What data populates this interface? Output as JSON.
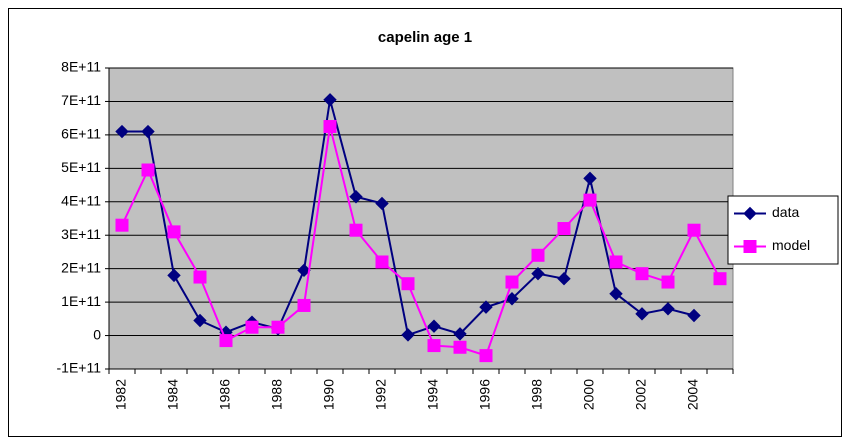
{
  "chart_data": {
    "type": "line",
    "title": "capelin age 1",
    "categories": [
      "1982",
      null,
      "1984",
      null,
      "1986",
      null,
      "1988",
      null,
      "1990",
      null,
      "1992",
      null,
      "1994",
      null,
      "1996",
      null,
      "1998",
      null,
      "2000",
      null,
      "2002",
      null,
      "2004",
      null
    ],
    "series": [
      {
        "name": "data",
        "color": "#000080",
        "marker": "diamond",
        "values": [
          610000000000,
          610000000000,
          180000000000,
          45000000000,
          10000000000,
          40000000000,
          20000000000,
          195000000000,
          705000000000,
          415000000000,
          395000000000,
          2000000000,
          28000000000,
          5000000000,
          85000000000,
          110000000000,
          185000000000,
          170000000000,
          470000000000,
          125000000000,
          65000000000,
          80000000000,
          60000000000,
          null
        ]
      },
      {
        "name": "model",
        "color": "#FF00FF",
        "marker": "square",
        "values": [
          330000000000,
          495000000000,
          310000000000,
          175000000000,
          -15000000000,
          25000000000,
          25000000000,
          90000000000,
          625000000000,
          315000000000,
          220000000000,
          155000000000,
          -30000000000,
          -35000000000,
          -60000000000,
          160000000000,
          240000000000,
          320000000000,
          405000000000,
          220000000000,
          185000000000,
          160000000000,
          315000000000,
          170000000000
        ]
      }
    ],
    "ylim": [
      -100000000000,
      800000000000
    ],
    "yticks": [
      {
        "value": -100000000000,
        "label": "-1E+11"
      },
      0,
      {
        "value": 100000000000,
        "label": "1E+11"
      },
      {
        "value": 200000000000,
        "label": "2E+11"
      },
      {
        "value": 300000000000,
        "label": "3E+11"
      },
      {
        "value": 400000000000,
        "label": "4E+11"
      },
      {
        "value": 500000000000,
        "label": "5E+11"
      },
      {
        "value": 600000000000,
        "label": "6E+11"
      },
      {
        "value": 700000000000,
        "label": "7E+11"
      },
      {
        "value": 800000000000,
        "label": "8E+11"
      }
    ],
    "grid": true,
    "plot_background": "#C0C0C0",
    "legend": "right"
  }
}
